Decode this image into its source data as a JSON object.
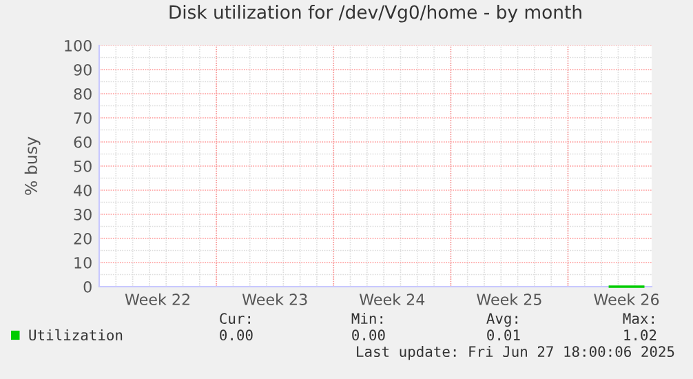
{
  "chart_data": {
    "type": "line",
    "title": "Disk utilization for /dev/Vg0/home - by month",
    "ylabel": "% busy",
    "categories": [
      null,
      null,
      null,
      "Week 22",
      null,
      null,
      null,
      null,
      null,
      null,
      "Week 23",
      null,
      null,
      null,
      null,
      null,
      null,
      "Week 24",
      null,
      null,
      null,
      null,
      null,
      null,
      "Week 25",
      null,
      null,
      null,
      null,
      null,
      null,
      "Week 26",
      null
    ],
    "series": [
      {
        "name": "Utilization",
        "color": "#00cc00",
        "values": [
          null,
          null,
          null,
          null,
          null,
          null,
          null,
          null,
          null,
          null,
          null,
          null,
          null,
          null,
          null,
          null,
          null,
          null,
          null,
          null,
          null,
          null,
          null,
          null,
          null,
          null,
          null,
          null,
          null,
          null,
          0,
          0,
          0
        ]
      }
    ],
    "ylim": [
      0,
      100
    ],
    "yticks": [
      0,
      10,
      20,
      30,
      40,
      50,
      60,
      70,
      80,
      90,
      100
    ],
    "grid": true,
    "legend": "bottom left",
    "annotations": [
      "Cur:",
      "Min:",
      "Avg:",
      "Max:",
      "0.00",
      "0.00",
      "0.01",
      "1.02",
      "Last update: Fri Jun 27 18:00:06 2025"
    ]
  }
}
